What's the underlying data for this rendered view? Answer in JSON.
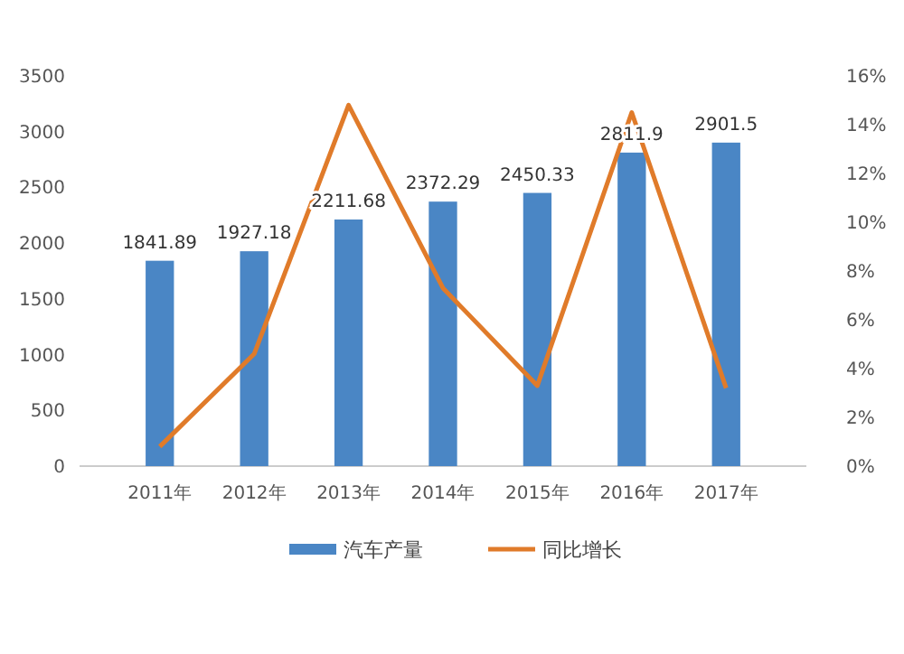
{
  "chart_data": {
    "type": "bar",
    "categories": [
      "2011年",
      "2012年",
      "2013年",
      "2014年",
      "2015年",
      "2016年",
      "2017年"
    ],
    "series": [
      {
        "name": "汽车产量",
        "color": "#4a86c5",
        "values": [
          1841.89,
          1927.18,
          2211.68,
          2372.29,
          2450.33,
          2811.9,
          2901.5
        ],
        "value_labels": [
          "1841.89",
          "1927.18",
          "2211.68",
          "2372.29",
          "2450.33",
          "2811.9",
          "2901.5"
        ]
      },
      {
        "name": "同比增长",
        "type": "line",
        "axis": "y2",
        "color": "#e07b2a",
        "values": [
          0.8,
          4.6,
          14.8,
          7.3,
          3.3,
          14.5,
          3.2
        ]
      }
    ],
    "ylim": [
      0,
      3500
    ],
    "yticks": [
      0,
      500,
      1000,
      1500,
      2000,
      2500,
      3000,
      3500
    ],
    "y2lim": [
      0,
      16
    ],
    "y2ticks": [
      {
        "value": 0,
        "label": "0%"
      },
      {
        "value": 2,
        "label": "2%"
      },
      {
        "value": 4,
        "label": "4%"
      },
      {
        "value": 6,
        "label": "6%"
      },
      {
        "value": 8,
        "label": "8%"
      },
      {
        "value": 10,
        "label": "10%"
      },
      {
        "value": 12,
        "label": "12%"
      },
      {
        "value": 14,
        "label": "14%"
      },
      {
        "value": 16,
        "label": "16%"
      }
    ],
    "grid": false,
    "legend": "bottom"
  }
}
